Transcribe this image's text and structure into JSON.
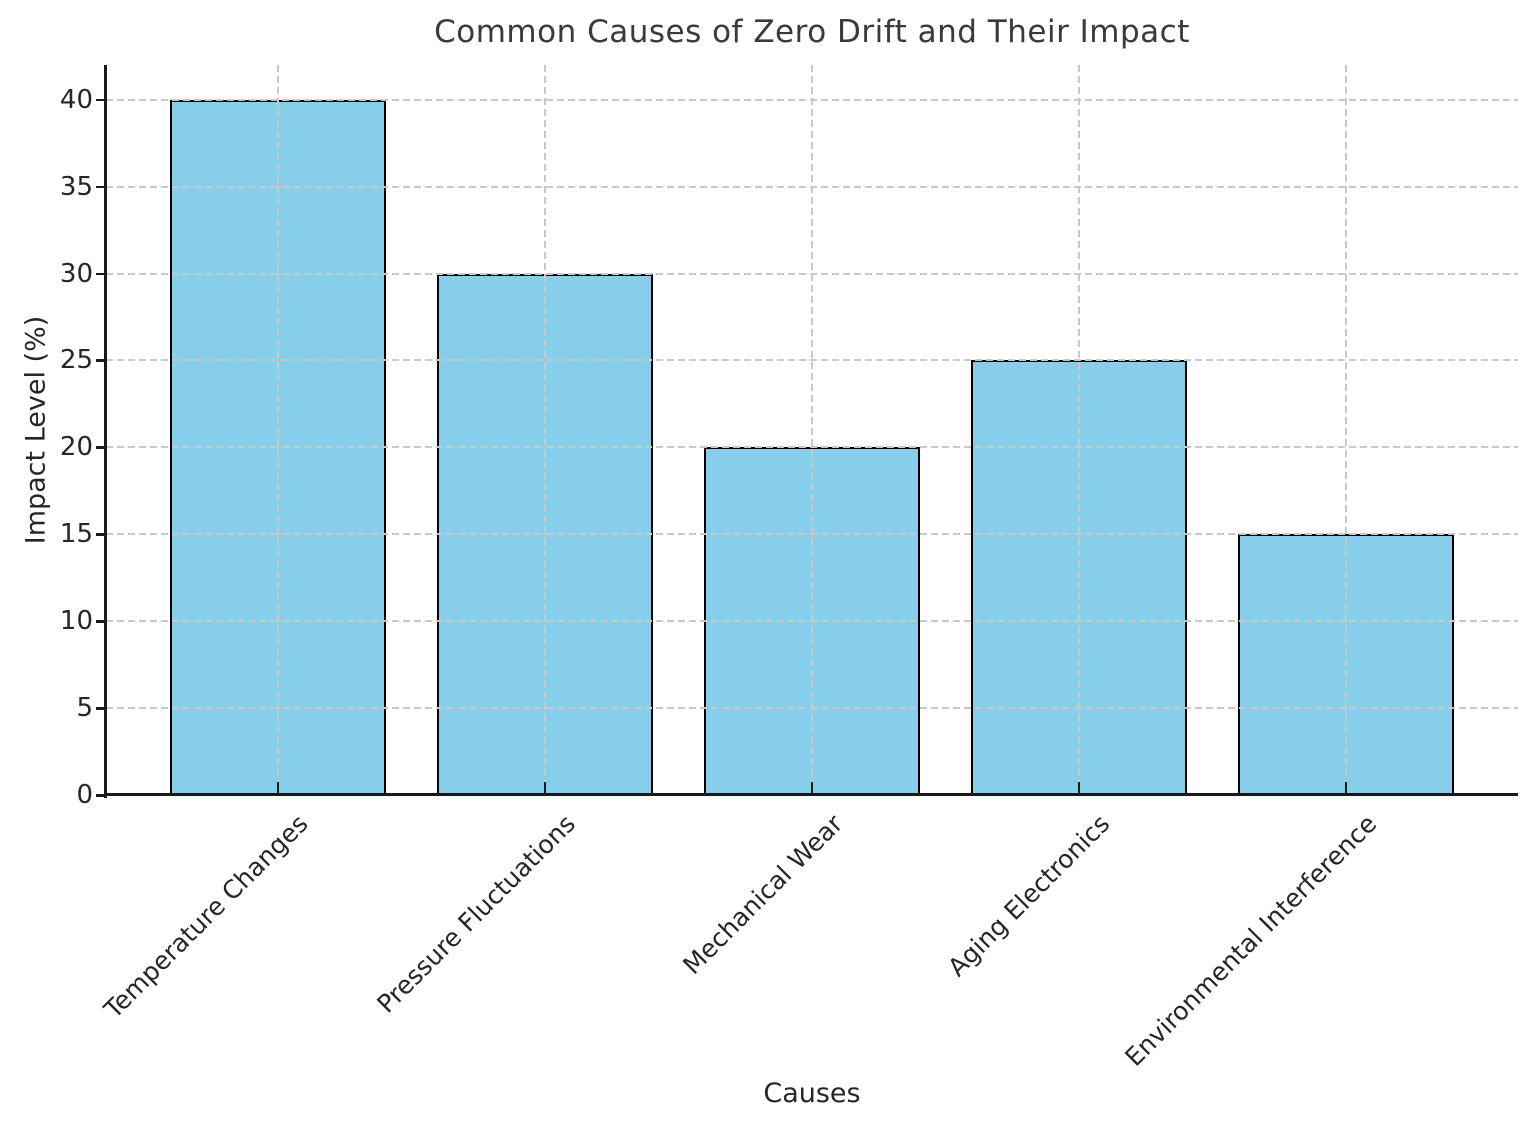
{
  "chart_data": {
    "type": "bar",
    "title": "Common Causes of Zero Drift and Their Impact",
    "xlabel": "Causes",
    "ylabel": "Impact Level (%)",
    "categories": [
      "Temperature Changes",
      "Pressure Fluctuations",
      "Mechanical Wear",
      "Aging Electronics",
      "Environmental Interference"
    ],
    "values": [
      40,
      30,
      20,
      25,
      15
    ],
    "yticks": [
      0,
      5,
      10,
      15,
      20,
      25,
      30,
      35,
      40
    ],
    "ylim": [
      0,
      42
    ],
    "grid": "dashed, both axes, drawn above bars",
    "legend_position": "none",
    "xtick_rotation_deg": 45,
    "colors": {
      "bar_fill": "#87CEEB",
      "bar_edge": "#000000",
      "gridline": "#c9c9c9",
      "spine": "#1a1a1a",
      "text": "#262626",
      "title_text": "#3a3a3a",
      "background": "#ffffff"
    }
  }
}
